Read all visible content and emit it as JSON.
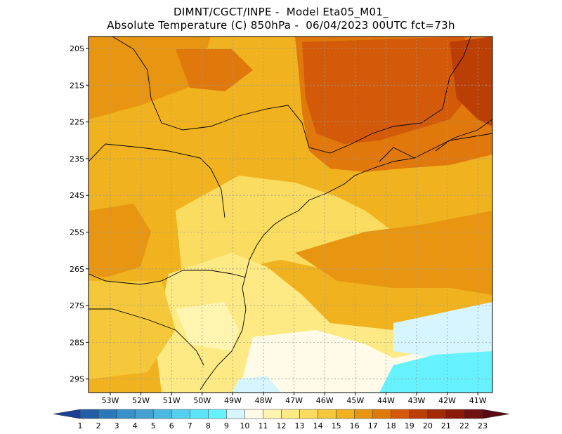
{
  "title": {
    "line1": "DIMNT/CGCT/INPE -  Model Eta05_M01_",
    "line2": "Absolute Temperature (C) 850hPa -  06/04/2023 00UTC fct=73h"
  },
  "map": {
    "lat_labels": [
      "20S",
      "21S",
      "22S",
      "23S",
      "24S",
      "25S",
      "26S",
      "27S",
      "28S",
      "29S"
    ],
    "lon_labels": [
      "53W",
      "52W",
      "51W",
      "50W",
      "49W",
      "48W",
      "47W",
      "46W",
      "45W",
      "44W",
      "43W",
      "42W",
      "41W"
    ],
    "lat_values": [
      -20,
      -21,
      -22,
      -23,
      -24,
      -25,
      -26,
      -27,
      -28,
      -29
    ],
    "lon_values": [
      -53,
      -52,
      -51,
      -50,
      -49,
      -48,
      -47,
      -46,
      -45,
      -44,
      -43,
      -42,
      -41
    ],
    "grid": true
  },
  "colorbar": {
    "labels": [
      "1",
      "2",
      "3",
      "4",
      "5",
      "6",
      "7",
      "8",
      "9",
      "10",
      "11",
      "12",
      "13",
      "14",
      "15",
      "16",
      "17",
      "18",
      "19",
      "20",
      "21",
      "22",
      "23"
    ],
    "colors": [
      "#1c3f94",
      "#225ea8",
      "#2b78b8",
      "#3a90c8",
      "#43a0d0",
      "#4bb8e0",
      "#55cfee",
      "#5fe3f8",
      "#66f3ff",
      "#d6f5ff",
      "#fffbe8",
      "#fff5b0",
      "#fdea85",
      "#f9dc60",
      "#f4c83a",
      "#f0b21e",
      "#e89612",
      "#e0780c",
      "#d25a08",
      "#bb3e05",
      "#a02a04",
      "#8a1a0a",
      "#701010",
      "#5a0a10"
    ]
  }
}
